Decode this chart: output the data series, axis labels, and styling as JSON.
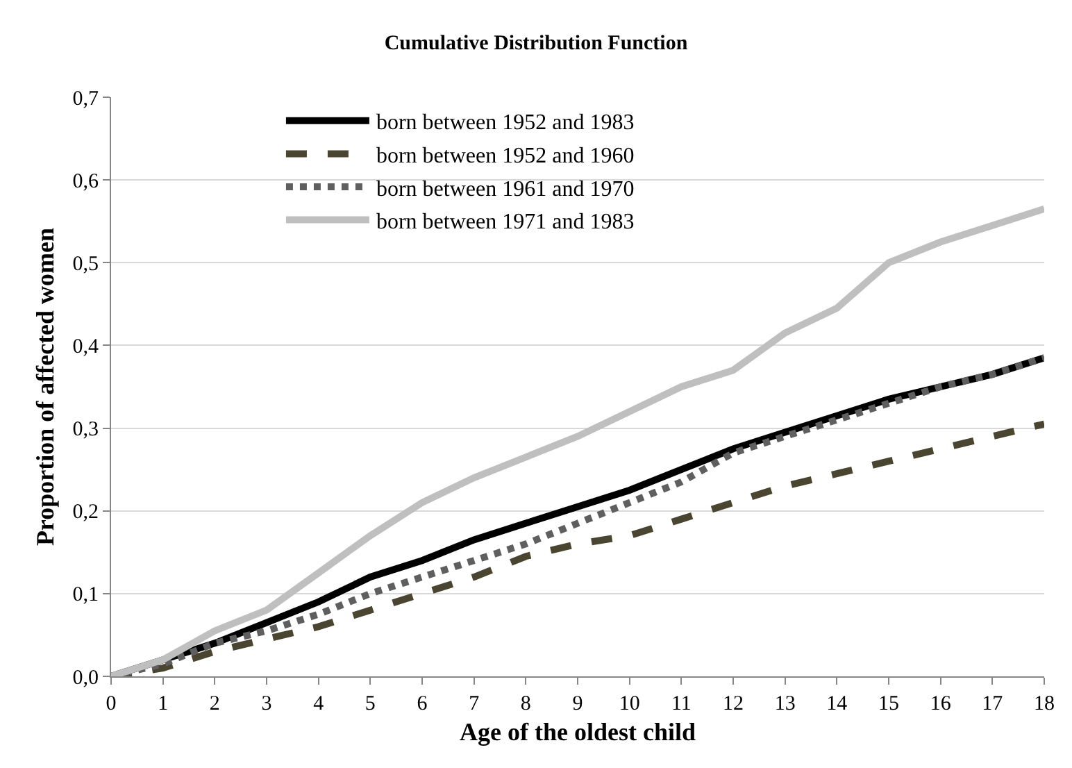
{
  "chart_data": {
    "type": "line",
    "title": "Cumulative Distribution Function",
    "xlabel": "Age of the oldest child",
    "ylabel": "Proportion of affected women",
    "x": [
      0,
      1,
      2,
      3,
      4,
      5,
      6,
      7,
      8,
      9,
      10,
      11,
      12,
      13,
      14,
      15,
      16,
      17,
      18
    ],
    "series": [
      {
        "name": "born between 1952 and 1983",
        "color": "#000000",
        "line_style": "solid",
        "values": [
          0,
          0.02,
          0.04,
          0.065,
          0.09,
          0.12,
          0.14,
          0.165,
          0.185,
          0.205,
          0.225,
          0.25,
          0.275,
          0.295,
          0.315,
          0.335,
          0.35,
          0.365,
          0.385
        ]
      },
      {
        "name": "born between 1952 and 1960",
        "color": "#4a4530",
        "line_style": "dashed",
        "values": [
          0,
          0.01,
          0.03,
          0.045,
          0.06,
          0.08,
          0.1,
          0.12,
          0.145,
          0.16,
          0.17,
          0.19,
          0.21,
          0.23,
          0.245,
          0.26,
          0.275,
          0.29,
          0.305
        ]
      },
      {
        "name": "born between 1961 and 1970",
        "color": "#5f5f5f",
        "line_style": "dotted",
        "values": [
          0,
          0.015,
          0.04,
          0.055,
          0.075,
          0.1,
          0.12,
          0.14,
          0.16,
          0.185,
          0.21,
          0.235,
          0.27,
          0.29,
          0.31,
          0.33,
          0.35,
          0.365,
          0.385
        ]
      },
      {
        "name": "born between 1971 and 1983",
        "color": "#bfbfbf",
        "line_style": "solid",
        "values": [
          0,
          0.02,
          0.055,
          0.08,
          0.125,
          0.17,
          0.21,
          0.24,
          0.265,
          0.29,
          0.32,
          0.35,
          0.37,
          0.415,
          0.445,
          0.5,
          0.525,
          0.545,
          0.565
        ]
      }
    ],
    "xlim": [
      0,
      18
    ],
    "xticks": [
      0,
      1,
      2,
      3,
      4,
      5,
      6,
      7,
      8,
      9,
      10,
      11,
      12,
      13,
      14,
      15,
      16,
      17,
      18
    ],
    "ylim": [
      0,
      0.7
    ],
    "yticks": [
      {
        "value": 0,
        "label": "0,0"
      },
      {
        "value": 0.1,
        "label": "0,1"
      },
      {
        "value": 0.2,
        "label": "0,2"
      },
      {
        "value": 0.3,
        "label": "0,3"
      },
      {
        "value": 0.4,
        "label": "0,4"
      },
      {
        "value": 0.5,
        "label": "0,5"
      },
      {
        "value": 0.6,
        "label": "0,6"
      },
      {
        "value": 0.7,
        "label": "0,7"
      }
    ],
    "grid": "y",
    "legend": "top left",
    "marker": "none"
  }
}
